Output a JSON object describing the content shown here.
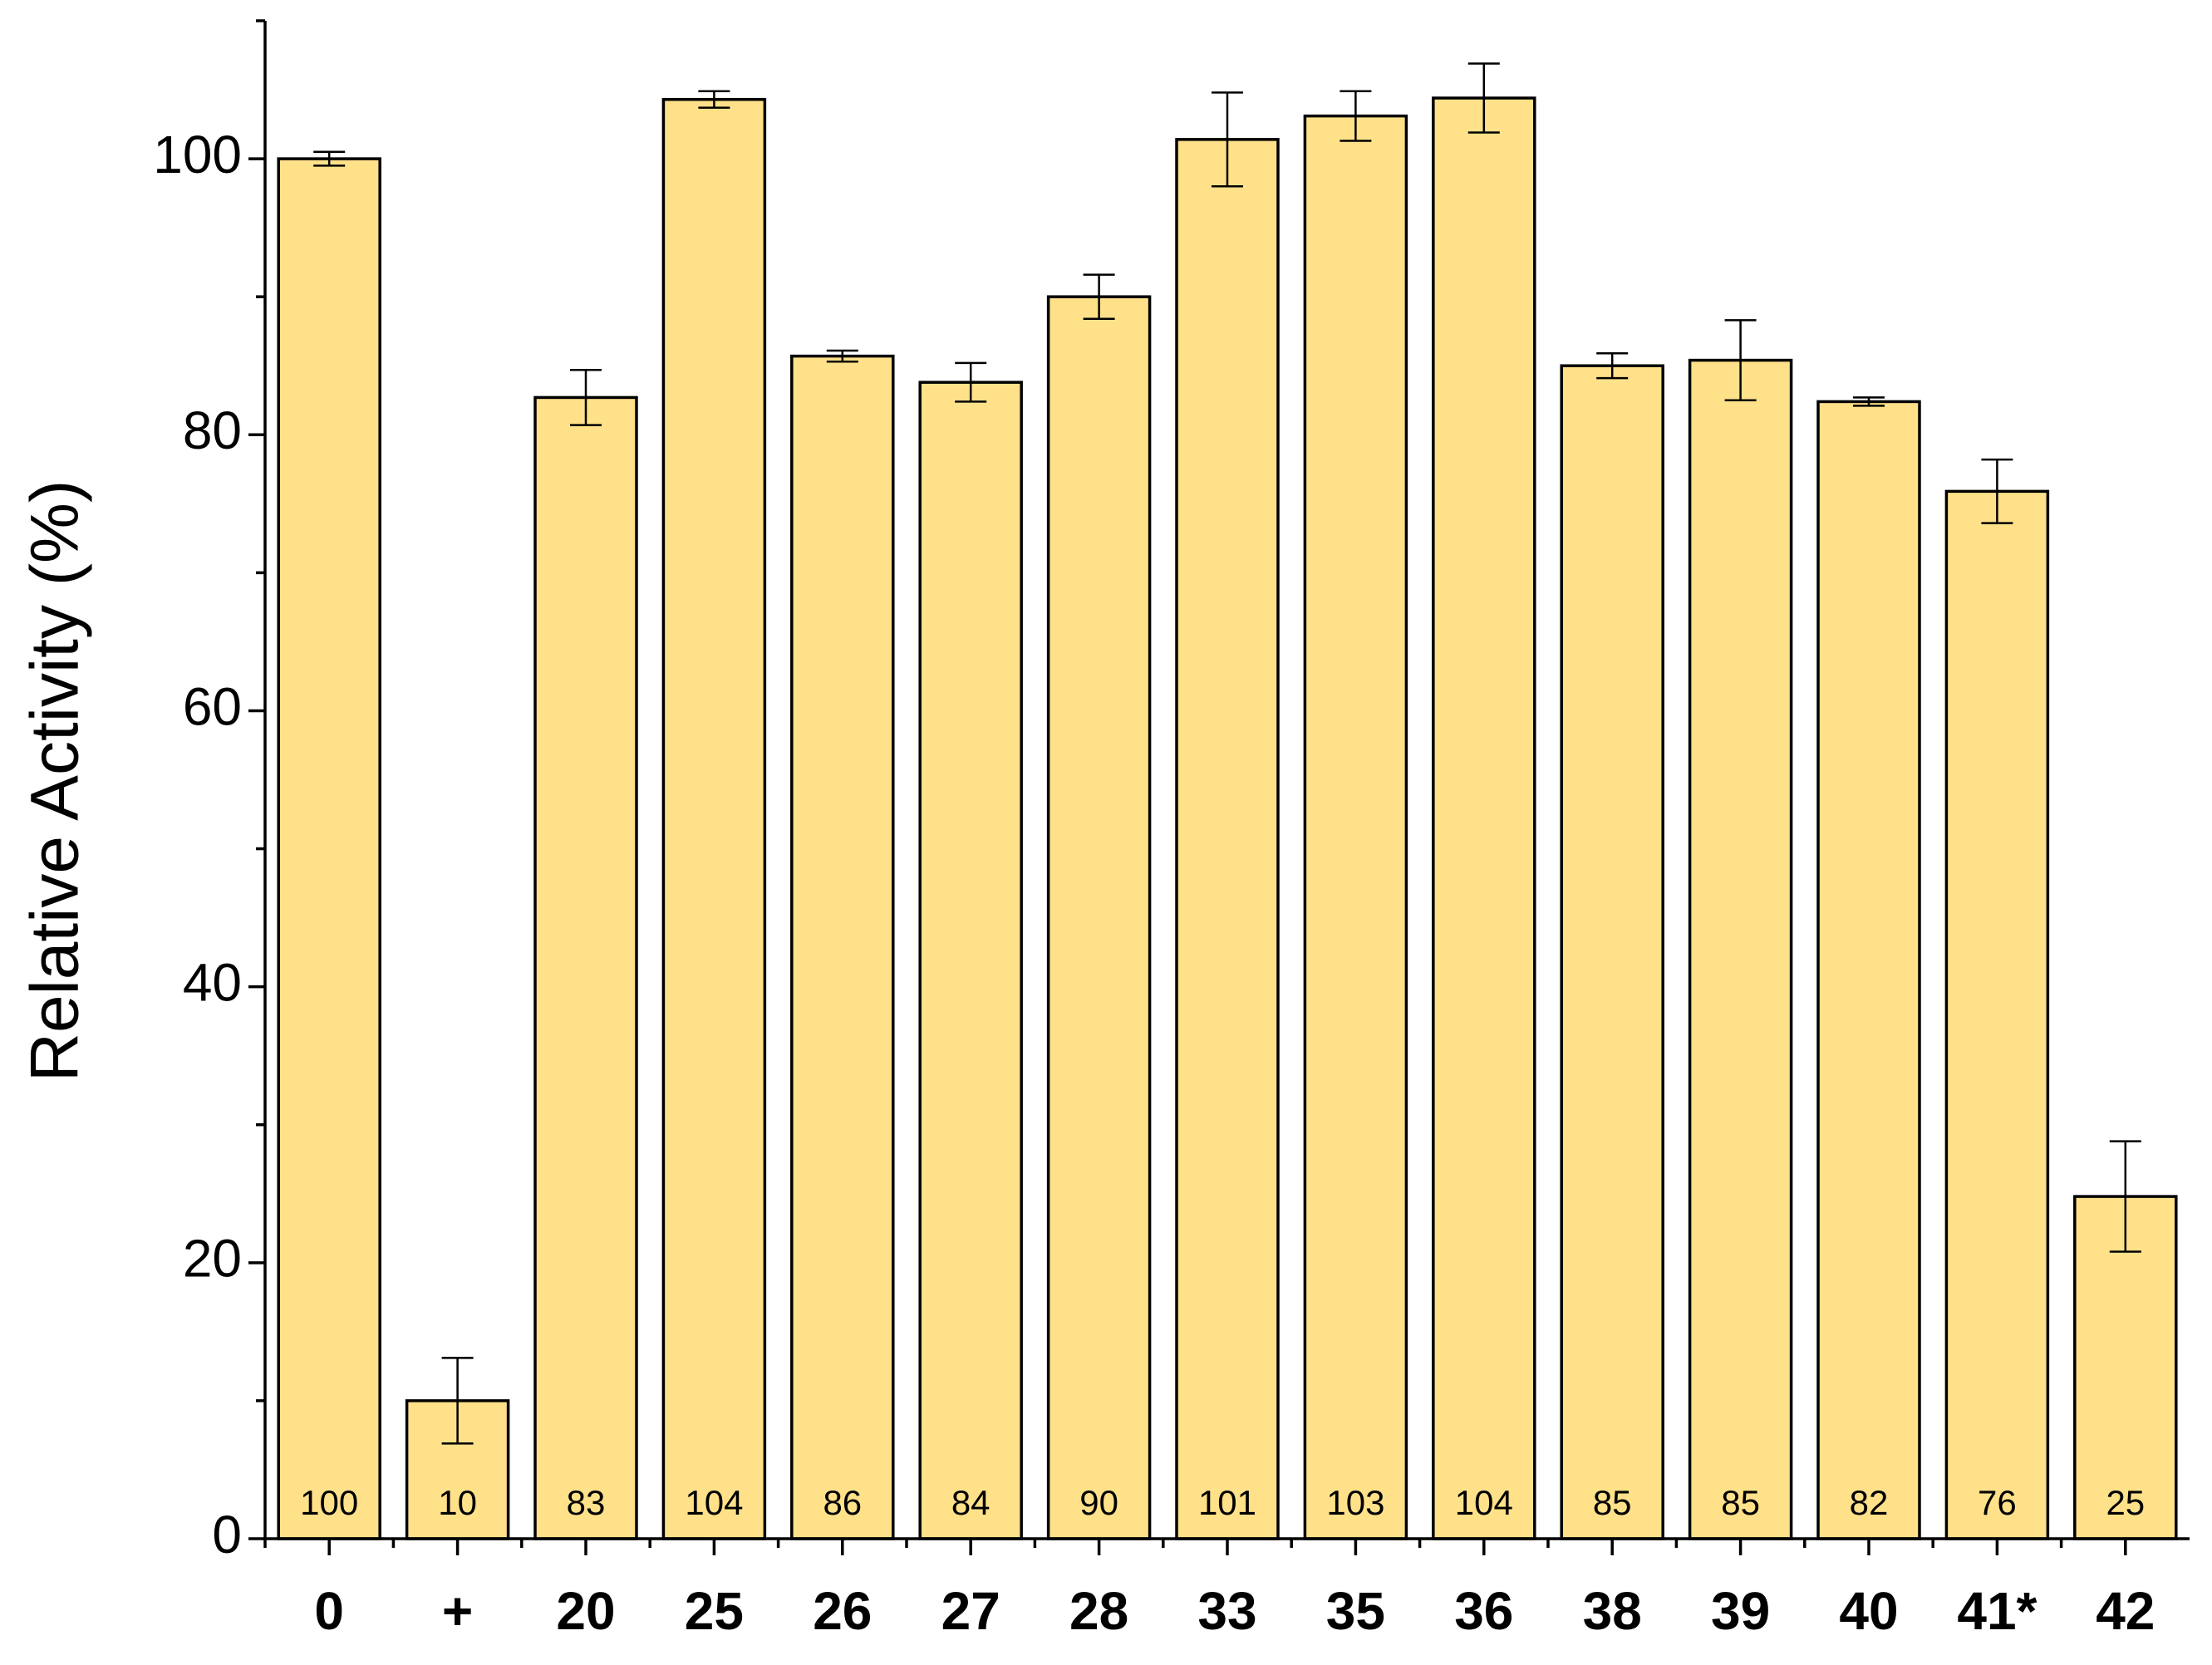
{
  "chart_data": {
    "type": "bar",
    "y_label": "Relative Activity (%)",
    "categories": [
      "0",
      "+",
      "20",
      "25",
      "26",
      "27",
      "28",
      "33",
      "35",
      "36",
      "38",
      "39",
      "40",
      "41*",
      "42"
    ],
    "values": [
      100,
      10,
      82.7,
      104.3,
      85.7,
      83.8,
      90.0,
      101.4,
      103.1,
      104.4,
      85.0,
      85.4,
      82.4,
      75.9,
      24.8
    ],
    "errors": [
      0.5,
      3.1,
      2.0,
      0.6,
      0.4,
      1.4,
      1.6,
      3.4,
      1.8,
      2.5,
      0.9,
      2.9,
      0.3,
      2.3,
      4.0
    ],
    "value_labels": [
      "100",
      "10",
      "83",
      "104",
      "86",
      "84",
      "90",
      "101",
      "103",
      "104",
      "85",
      "85",
      "82",
      "76",
      "25"
    ],
    "color": "#ffe18a",
    "ylim": [
      0,
      110
    ],
    "yticks": [
      0,
      20,
      40,
      60,
      80,
      100
    ],
    "yminorticks": [
      10,
      30,
      50,
      70,
      90,
      110
    ],
    "grid": false
  }
}
